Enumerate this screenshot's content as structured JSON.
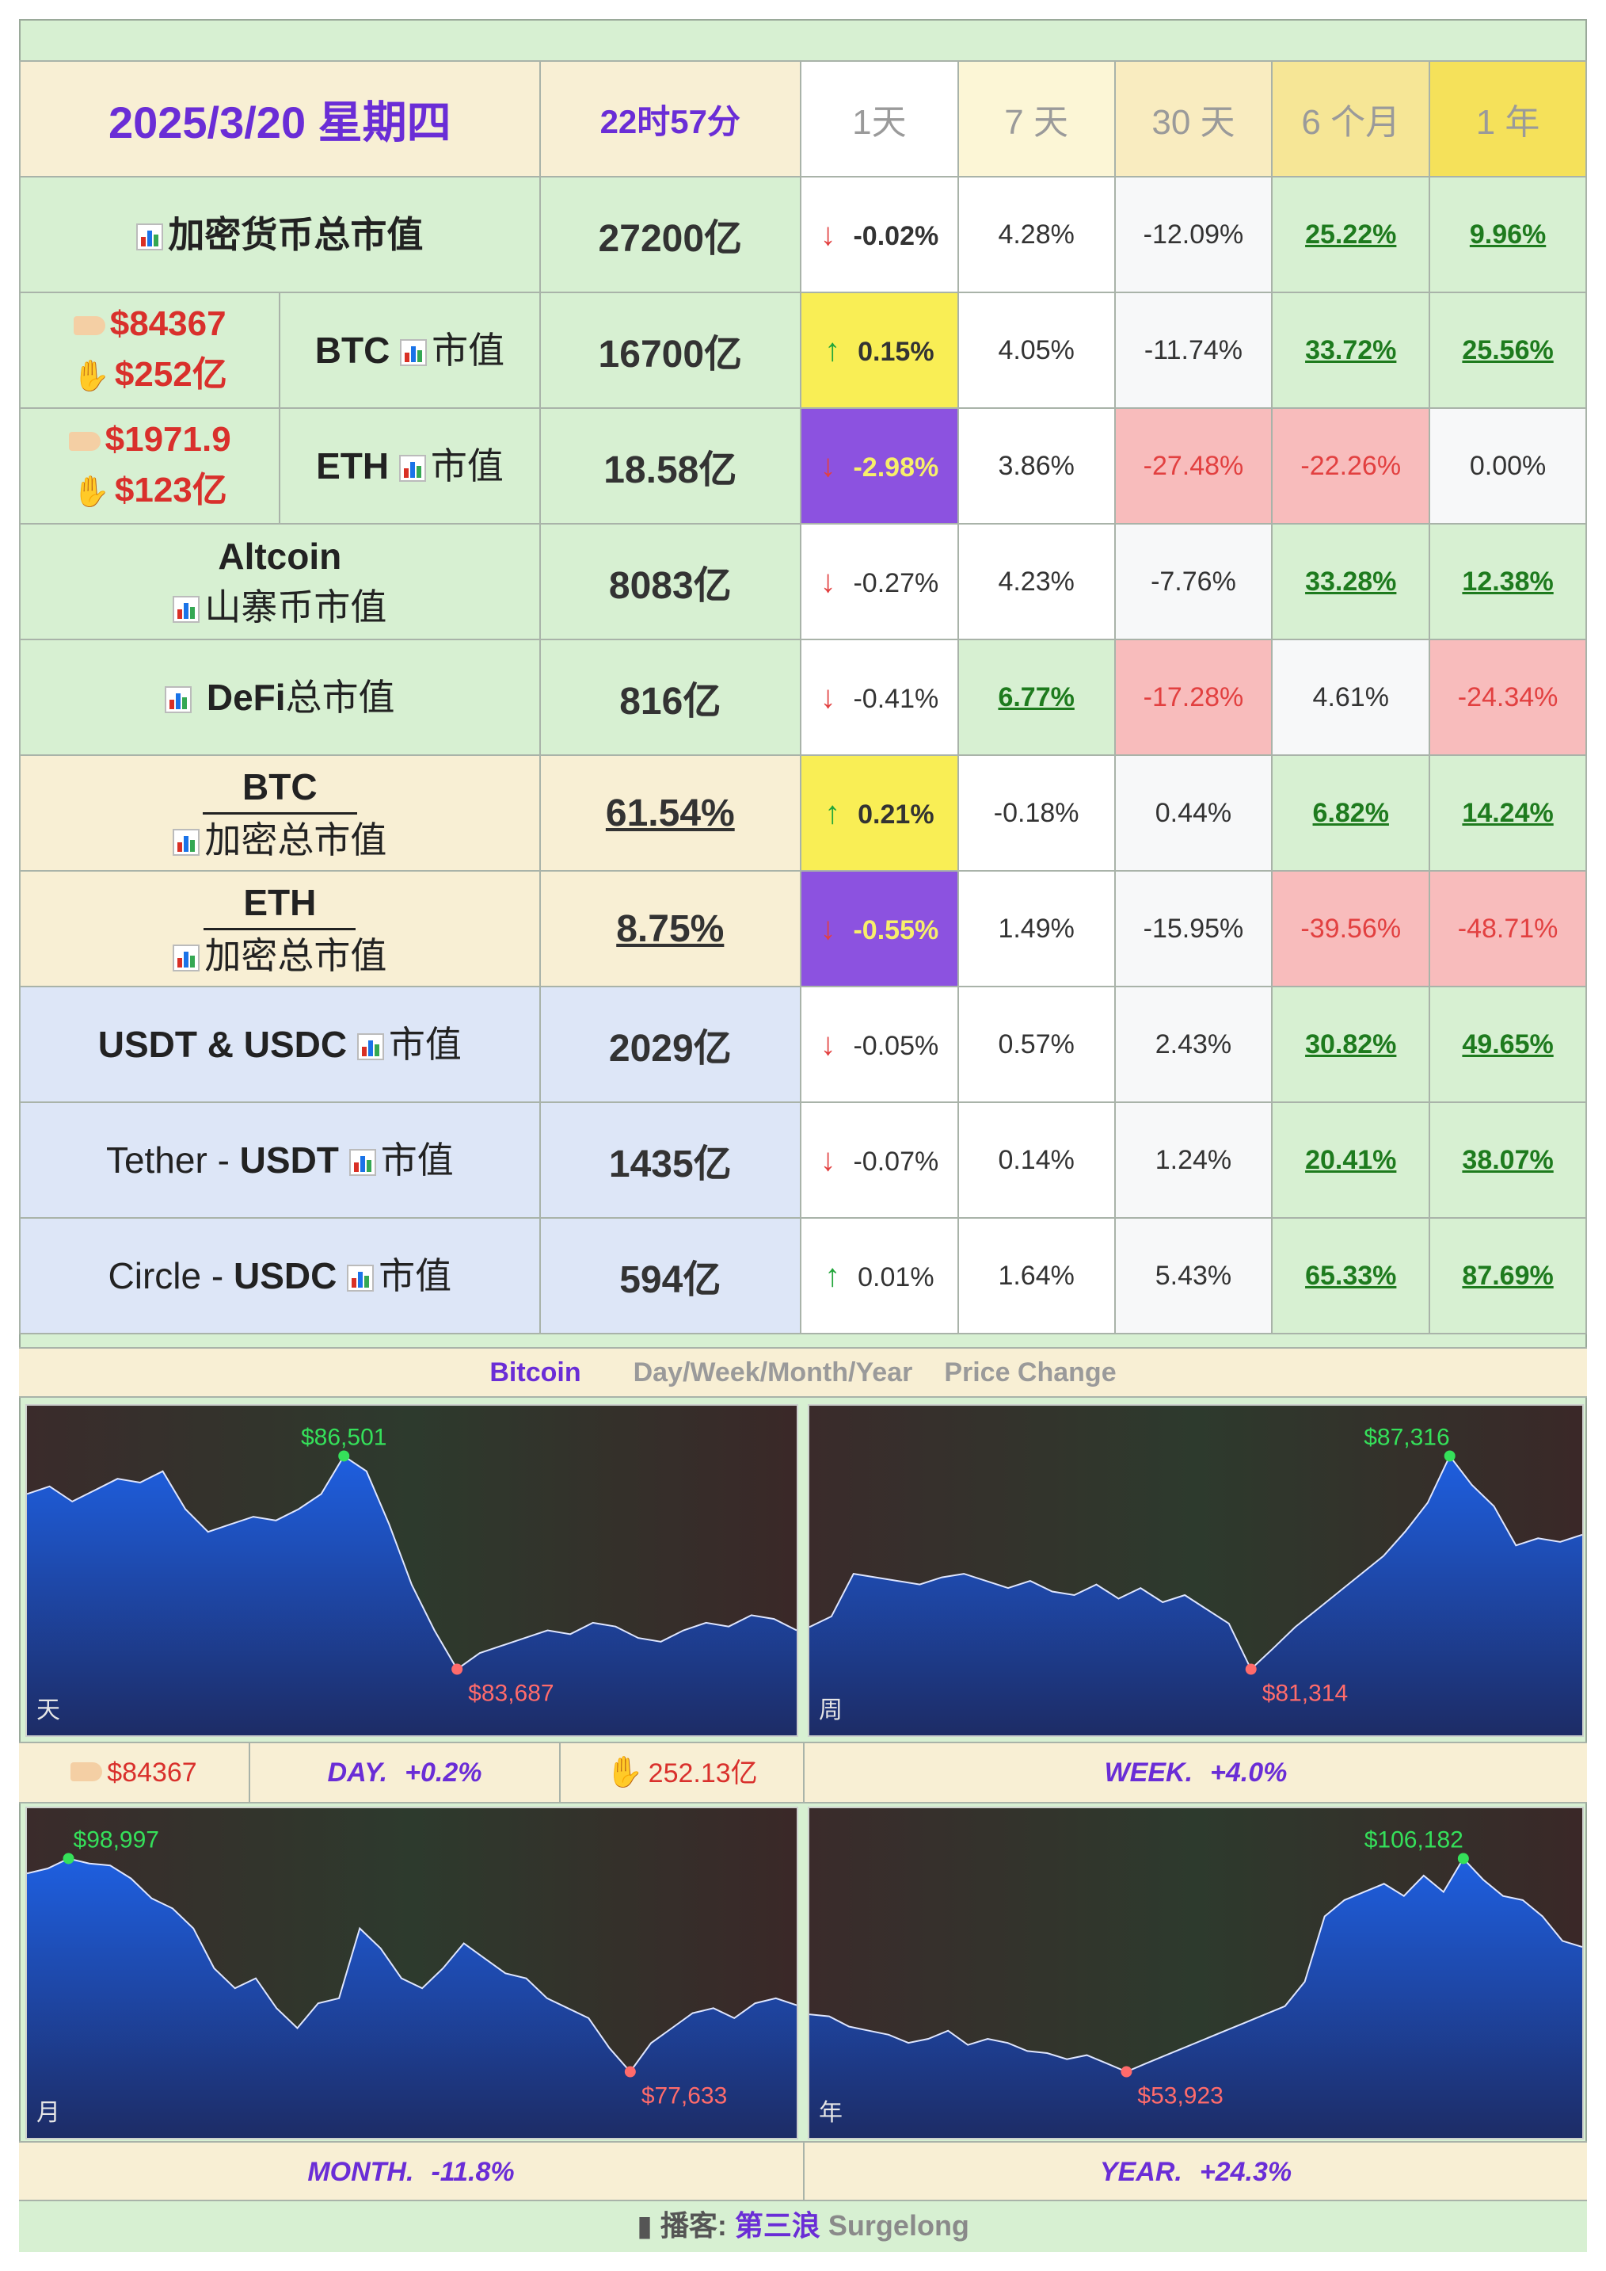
{
  "header": {
    "date": "2025/3/20 星期四",
    "time": "22时57分",
    "periods": [
      "1天",
      "7 天",
      "30 天",
      "6 个月",
      "1 年"
    ]
  },
  "rows": [
    {
      "label": "加密货币总市值",
      "value": "27200亿",
      "d1": "-0.02%",
      "d7": "4.28%",
      "d30": "-12.09%",
      "m6": "25.22%",
      "y1": "9.96%"
    },
    {
      "price": "$84367",
      "volume": "$252亿",
      "label": "BTC",
      "label_suffix": "市值",
      "value": "16700亿",
      "d1": "0.15%",
      "d7": "4.05%",
      "d30": "-11.74%",
      "m6": "33.72%",
      "y1": "25.56%"
    },
    {
      "price": "$1971.9",
      "volume": "$123亿",
      "label": "ETH",
      "label_suffix": "市值",
      "value": "18.58亿",
      "d1": "-2.98%",
      "d7": "3.86%",
      "d30": "-27.48%",
      "m6": "-22.26%",
      "y1": "0.00%"
    },
    {
      "label": "Altcoin",
      "label2": "山寨币市值",
      "value": "8083亿",
      "d1": "-0.27%",
      "d7": "4.23%",
      "d30": "-7.76%",
      "m6": "33.28%",
      "y1": "12.38%"
    },
    {
      "label": "DeFi",
      "label_suffix": "总市值",
      "value": "816亿",
      "d1": "-0.41%",
      "d7": "6.77%",
      "d30": "-17.28%",
      "m6": "4.61%",
      "y1": "-24.34%"
    },
    {
      "label": "BTC",
      "label2": "加密总市值",
      "value": "61.54%",
      "d1": "0.21%",
      "d7": "-0.18%",
      "d30": "0.44%",
      "m6": "6.82%",
      "y1": "14.24%"
    },
    {
      "label": "ETH",
      "label2": "加密总市值",
      "value": "8.75%",
      "d1": "-0.55%",
      "d7": "1.49%",
      "d30": "-15.95%",
      "m6": "-39.56%",
      "y1": "-48.71%"
    },
    {
      "label": "USDT & USDC",
      "label_suffix": "市值",
      "value": "2029亿",
      "d1": "-0.05%",
      "d7": "0.57%",
      "d30": "2.43%",
      "m6": "30.82%",
      "y1": "49.65%"
    },
    {
      "label_prefix": "Tether - ",
      "label": "USDT",
      "label_suffix": "市值",
      "value": "1435亿",
      "d1": "-0.07%",
      "d7": "0.14%",
      "d30": "1.24%",
      "m6": "20.41%",
      "y1": "38.07%"
    },
    {
      "label_prefix": "Circle - ",
      "label": "USDC",
      "label_suffix": "市值",
      "value": "594亿",
      "d1": "0.01%",
      "d7": "1.64%",
      "d30": "5.43%",
      "m6": "65.33%",
      "y1": "87.69%"
    }
  ],
  "caption": {
    "asset": "Bitcoin",
    "periods": "Day/Week/Month/Year",
    "metric": "Price Change"
  },
  "strips": {
    "day": {
      "price": "$84367",
      "label": "DAY.",
      "change": "+0.2%",
      "volume": "252.13亿"
    },
    "week": {
      "label": "WEEK.",
      "change": "+4.0%"
    },
    "month": {
      "label": "MONTH.",
      "change": "-11.8%"
    },
    "year": {
      "label": "YEAR.",
      "change": "+24.3%"
    }
  },
  "footer": {
    "prefix": "播客:",
    "name": "第三浪",
    "brand": "Surgelong"
  },
  "colors": {
    "accent_purple": "#6a2dd6",
    "up_green": "#22a53a",
    "down_red": "#e24040",
    "green_bg": "#d7f0d2",
    "cream_bg": "#f8efd4",
    "blue_bg": "#dde6f7"
  },
  "chart_data": [
    {
      "type": "area",
      "title": "天",
      "series": [
        {
          "values": [
            86000,
            86100,
            85900,
            86050,
            86200,
            86150,
            86300,
            85800,
            85500,
            85600,
            85700,
            85650,
            85800,
            86000,
            86501,
            86300,
            85600,
            84800,
            84200,
            83687,
            83900,
            84000,
            84100,
            84200,
            84150,
            84300,
            84250,
            84100,
            84050,
            84200,
            84300,
            84250,
            84400,
            84350,
            84200
          ]
        }
      ],
      "annotations": [
        {
          "label": "$86,501",
          "value": 86501,
          "kind": "high"
        },
        {
          "label": "$83,687",
          "value": 83687,
          "kind": "low"
        }
      ]
    },
    {
      "type": "area",
      "title": "周",
      "series": [
        {
          "values": [
            82500,
            82800,
            84000,
            83900,
            83800,
            83700,
            83900,
            84000,
            83800,
            83600,
            83800,
            83500,
            83400,
            83700,
            83300,
            83600,
            83200,
            83400,
            83000,
            82600,
            81314,
            81900,
            82500,
            83000,
            83500,
            84000,
            84500,
            85200,
            86000,
            87316,
            86500,
            85900,
            84800,
            85000,
            84900,
            85100
          ]
        }
      ],
      "annotations": [
        {
          "label": "$87,316",
          "value": 87316,
          "kind": "high"
        },
        {
          "label": "$81,314",
          "value": 81314,
          "kind": "low"
        }
      ]
    },
    {
      "type": "area",
      "title": "月",
      "series": [
        {
          "values": [
            97500,
            98000,
            98997,
            98500,
            98300,
            97000,
            95000,
            94000,
            92000,
            88000,
            86000,
            87000,
            84000,
            82000,
            84500,
            85000,
            92000,
            90000,
            87000,
            86000,
            88000,
            90500,
            89000,
            87500,
            87000,
            85000,
            84000,
            83000,
            80000,
            77633,
            80500,
            82000,
            83500,
            84000,
            83000,
            84500,
            85000,
            84300
          ]
        }
      ],
      "annotations": [
        {
          "label": "$98,997",
          "value": 98997,
          "kind": "high"
        },
        {
          "label": "$77,633",
          "value": 77633,
          "kind": "low"
        }
      ]
    },
    {
      "type": "area",
      "title": "年",
      "series": [
        {
          "values": [
            68000,
            67500,
            65000,
            64000,
            63000,
            61000,
            62000,
            64000,
            60500,
            62000,
            61000,
            59000,
            58500,
            57000,
            58000,
            56000,
            53923,
            56000,
            58000,
            60000,
            62000,
            64000,
            66000,
            68000,
            70000,
            76000,
            92000,
            96000,
            98000,
            100000,
            97000,
            102000,
            98000,
            106182,
            101000,
            97000,
            96000,
            92000,
            86000,
            84500
          ]
        }
      ],
      "annotations": [
        {
          "label": "$106,182",
          "value": 106182,
          "kind": "high"
        },
        {
          "label": "$53,923",
          "value": 53923,
          "kind": "low"
        }
      ]
    }
  ]
}
